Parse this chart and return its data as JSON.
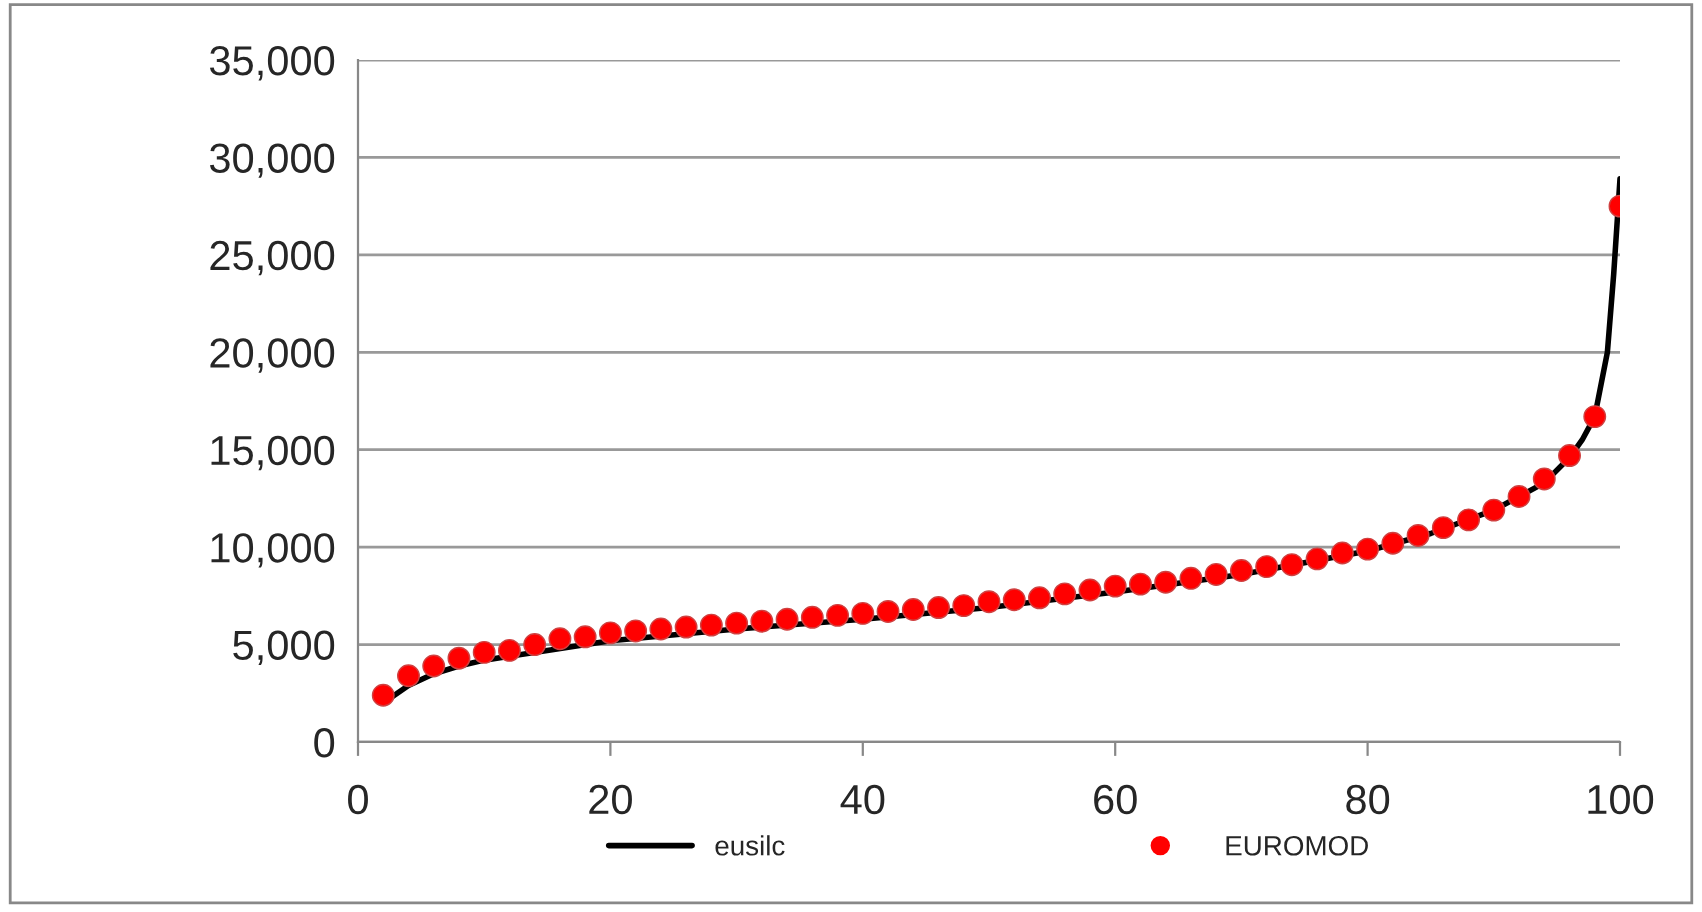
{
  "chart_data": {
    "type": "line",
    "series": [
      {
        "name": "eusilc",
        "color": "#000000",
        "x": [
          2,
          4,
          6,
          8,
          10,
          15,
          20,
          30,
          40,
          50,
          60,
          70,
          80,
          85,
          90,
          94,
          96,
          97,
          98,
          99,
          99.5,
          100
        ],
        "values": [
          2000,
          2900,
          3500,
          3900,
          4200,
          4700,
          5200,
          5800,
          6300,
          6900,
          7700,
          8600,
          9800,
          10700,
          11900,
          13300,
          14600,
          15500,
          16700,
          20000,
          24000,
          28900
        ]
      },
      {
        "name": "EUROMOD",
        "type": "scatter",
        "marker": "circle",
        "color": "#ff0000",
        "x": [
          2,
          4,
          6,
          8,
          10,
          12,
          14,
          16,
          18,
          20,
          22,
          24,
          26,
          28,
          30,
          32,
          34,
          36,
          38,
          40,
          42,
          44,
          46,
          48,
          50,
          52,
          54,
          56,
          58,
          60,
          62,
          64,
          66,
          68,
          70,
          72,
          74,
          76,
          78,
          80,
          82,
          84,
          86,
          88,
          90,
          92,
          94,
          96,
          98,
          100
        ],
        "values": [
          2400,
          3400,
          3900,
          4300,
          4600,
          4700,
          5000,
          5300,
          5400,
          5600,
          5700,
          5800,
          5900,
          6000,
          6100,
          6200,
          6300,
          6400,
          6500,
          6600,
          6700,
          6800,
          6900,
          7000,
          7200,
          7300,
          7400,
          7600,
          7800,
          8000,
          8100,
          8200,
          8400,
          8600,
          8800,
          9000,
          9100,
          9400,
          9700,
          9900,
          10200,
          10600,
          11000,
          11400,
          11900,
          12600,
          13500,
          14700,
          16700,
          27500
        ]
      }
    ],
    "xlim": [
      0,
      100
    ],
    "xticks": [
      0,
      20,
      40,
      60,
      80,
      100
    ],
    "ylim": [
      0,
      35000
    ],
    "yticks": [
      {
        "value": 0,
        "label": "0"
      },
      {
        "value": 5000,
        "label": "5,000"
      },
      {
        "value": 10000,
        "label": "10,000"
      },
      {
        "value": 15000,
        "label": "15,000"
      },
      {
        "value": 20000,
        "label": "20,000"
      },
      {
        "value": 25000,
        "label": "25,000"
      },
      {
        "value": 30000,
        "label": "30,000"
      },
      {
        "value": 35000,
        "label": "35,000"
      }
    ],
    "grid": "y",
    "legend": "bottom"
  }
}
